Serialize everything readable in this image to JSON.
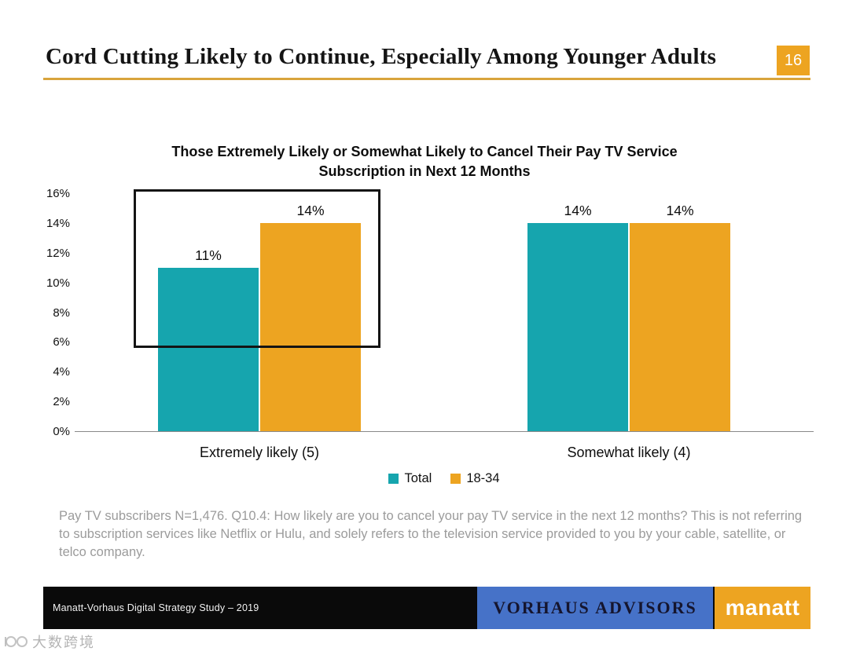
{
  "slide": {
    "title": "Cord Cutting Likely to Continue, Especially Among Younger Adults",
    "page_number": "16"
  },
  "chart_data": {
    "type": "bar",
    "title": "Those Extremely Likely or Somewhat Likely to Cancel Their Pay TV Service Subscription in Next 12 Months",
    "categories": [
      "Extremely likely (5)",
      "Somewhat likely (4)"
    ],
    "series": [
      {
        "name": "Total",
        "color": "#16A5AE",
        "values": [
          11,
          14
        ]
      },
      {
        "name": "18-34",
        "color": "#EDA421",
        "values": [
          14,
          14
        ]
      }
    ],
    "value_suffix": "%",
    "ylim": [
      0,
      16
    ],
    "ytick_step": 2,
    "yticks": [
      "0%",
      "2%",
      "4%",
      "6%",
      "8%",
      "10%",
      "12%",
      "14%",
      "16%"
    ],
    "grid": false,
    "legend_position": "bottom",
    "annotations": [
      {
        "type": "highlight-box",
        "target": "Extremely likely (5)",
        "note": "black rectangle emphasizing the first category group"
      }
    ]
  },
  "footnote": {
    "text": "Pay TV subscribers N=1,476. Q10.4: How likely are you to cancel your pay TV service in the next 12 months? This is not referring to subscription services like Netflix or Hulu, and solely refers to the television service provided to you by your cable, satellite, or telco company."
  },
  "footer": {
    "study_label": "Manatt-Vorhaus Digital Strategy Study – 2019",
    "vorhaus_label": "VORHAUS ADVISORS",
    "manatt_label": "manatt"
  },
  "watermark": {
    "text": "大数跨境"
  },
  "colors": {
    "gold": "#EDA421",
    "teal": "#16A5AE",
    "vorhaus_blue": "#4672C8",
    "footer_black": "#0A0A0A",
    "title_rule_gold": "#D9A43C"
  }
}
